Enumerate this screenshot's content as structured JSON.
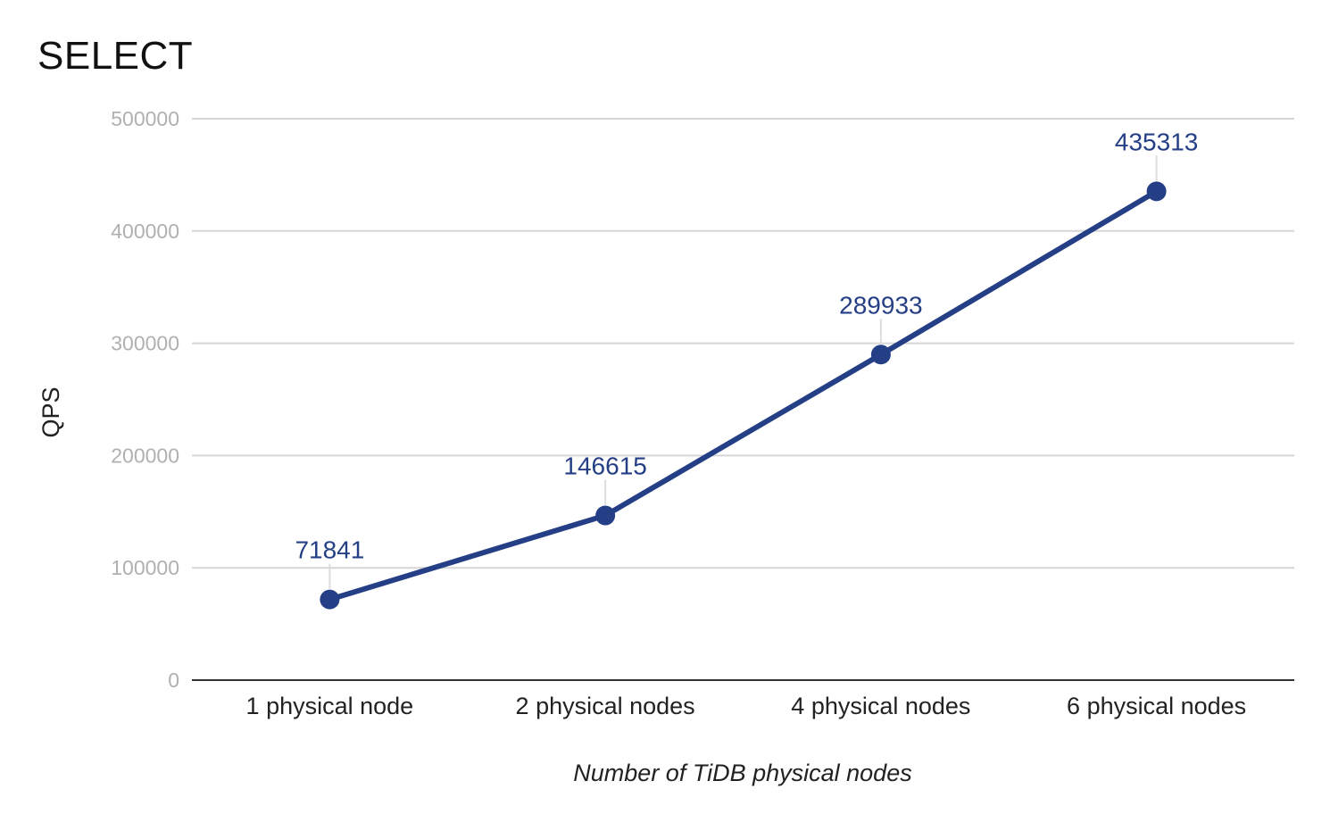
{
  "chart_data": {
    "type": "line",
    "title": "SELECT",
    "xlabel": "Number of TiDB physical nodes",
    "ylabel": "QPS",
    "categories": [
      "1 physical node",
      "2 physical nodes",
      "4 physical nodes",
      "6 physical nodes"
    ],
    "series": [
      {
        "values": [
          71841,
          146615,
          289933,
          435313
        ]
      }
    ],
    "data_labels": [
      "71841",
      "146615",
      "289933",
      "435313"
    ],
    "ylim": [
      0,
      500000
    ],
    "yticks": [
      0,
      100000,
      200000,
      300000,
      400000,
      500000
    ],
    "ytick_labels": [
      "0",
      "100000",
      "200000",
      "300000",
      "400000",
      "500000"
    ],
    "grid": true,
    "legend": "none",
    "colors": {
      "series": "#253f86",
      "grid": "#d6d6d6",
      "axis": "#333333",
      "ytick": "#b0b0b0"
    }
  }
}
